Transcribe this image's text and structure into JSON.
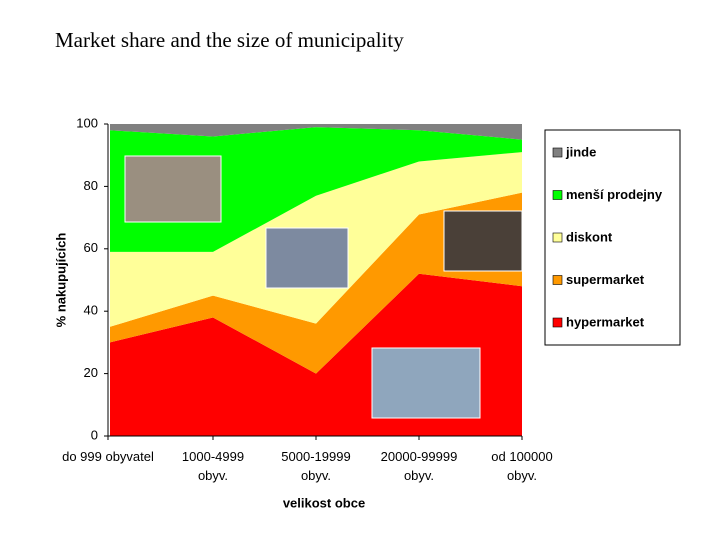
{
  "title": "Market share and the size of municipality",
  "chart_data": {
    "type": "stacked_area",
    "x_label": "velikost obce",
    "y_label": "% nakupujících",
    "categories": [
      "do 999 obyvatel",
      "1000-4999\nobyv.",
      "5000-19999\nobyv.",
      "20000-99999\nobyv.",
      "od 100000\nobyv."
    ],
    "series": [
      {
        "name": "hypermarket",
        "color": "#ff0000",
        "values": [
          30,
          38,
          20,
          52,
          48
        ]
      },
      {
        "name": "supermarket",
        "color": "#ff9900",
        "values": [
          5,
          7,
          16,
          19,
          30
        ]
      },
      {
        "name": "diskont",
        "color": "#ffff99",
        "values": [
          24,
          14,
          41,
          17,
          13
        ]
      },
      {
        "name": "menší prodejny",
        "color": "#00ff00",
        "values": [
          39,
          37,
          22,
          10,
          4
        ]
      },
      {
        "name": "jinde",
        "color": "#808080",
        "values": [
          2,
          4,
          1,
          2,
          5
        ]
      }
    ],
    "ylim": [
      0,
      100
    ],
    "yticks": [
      0,
      20,
      40,
      60,
      80,
      100
    ],
    "legend": "right"
  }
}
